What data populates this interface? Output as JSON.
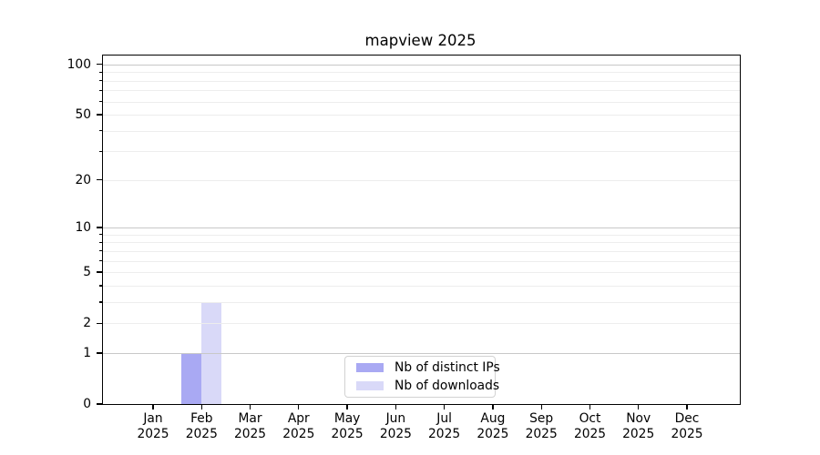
{
  "chart_data": {
    "type": "bar",
    "title": "mapview 2025",
    "categories": [
      "Jan",
      "Feb",
      "Mar",
      "Apr",
      "May",
      "Jun",
      "Jul",
      "Aug",
      "Sep",
      "Oct",
      "Nov",
      "Dec"
    ],
    "year_label": "2025",
    "series": [
      {
        "name": "Nb of distinct IPs",
        "color": "#a9a9f3",
        "values": [
          0,
          1,
          0,
          0,
          0,
          0,
          0,
          0,
          0,
          0,
          0,
          0
        ]
      },
      {
        "name": "Nb of downloads",
        "color": "#d9d9f8",
        "values": [
          0,
          3,
          0,
          0,
          0,
          0,
          0,
          0,
          0,
          0,
          0,
          0
        ]
      }
    ],
    "yscale": "log1p",
    "ylim": [
      0,
      113
    ],
    "y_major_ticks": [
      0,
      1,
      2,
      5,
      10,
      20,
      50,
      100
    ],
    "y_minor_ticks": [
      3,
      4,
      6,
      7,
      8,
      9,
      30,
      40,
      60,
      70,
      80,
      90
    ],
    "y_decade_lines": [
      1,
      10,
      100
    ],
    "xlabel": "",
    "ylabel": "",
    "grid": true,
    "legend_position": "lower center"
  },
  "colors": {
    "bar_distinct_ips": "#a9a9f3",
    "bar_downloads": "#d9d9f8",
    "grid_major": "#c8c8c8",
    "grid_minor": "#ededed",
    "spine": "#000000",
    "text": "#000000",
    "legend_border": "#d2d2d2",
    "background": "#ffffff"
  }
}
